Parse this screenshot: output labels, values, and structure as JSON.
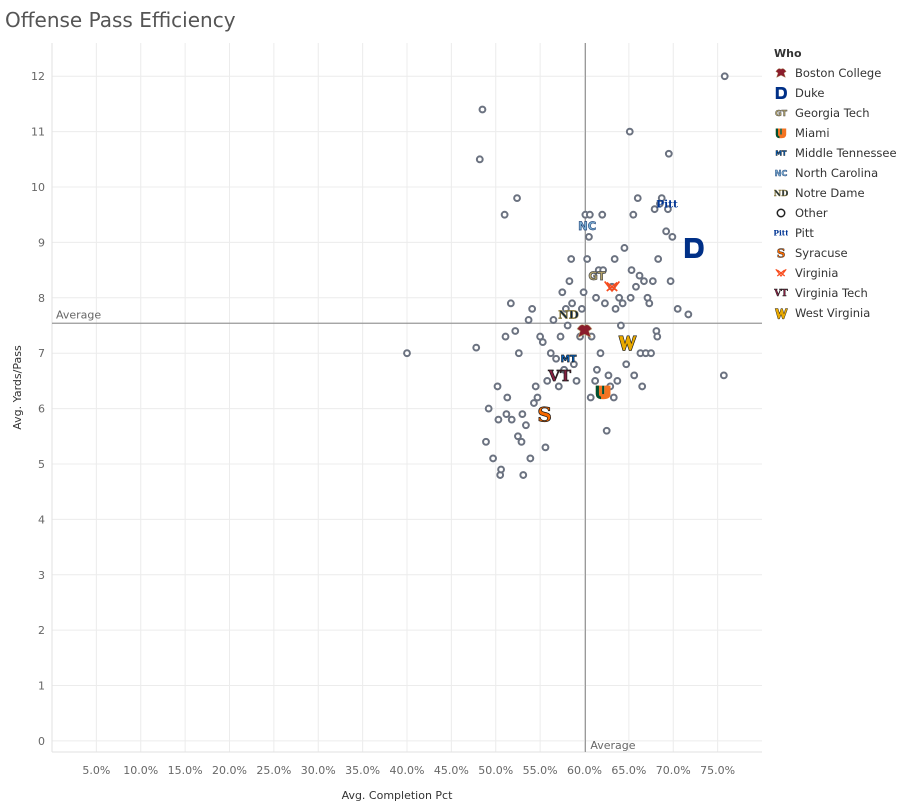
{
  "title": "Offense Pass Efficiency",
  "chart_data": {
    "type": "scatter",
    "xlabel": "Avg. Completion Pct",
    "ylabel": "Avg. Yards/Pass",
    "xlim": [
      0.0,
      0.8
    ],
    "ylim": [
      -0.2,
      12.6
    ],
    "x_ticks": [
      0.05,
      0.1,
      0.15,
      0.2,
      0.25,
      0.3,
      0.35,
      0.4,
      0.45,
      0.5,
      0.55,
      0.6,
      0.65,
      0.7,
      0.75
    ],
    "x_tick_labels": [
      "5.0%",
      "10.0%",
      "15.0%",
      "20.0%",
      "25.0%",
      "30.0%",
      "35.0%",
      "40.0%",
      "45.0%",
      "50.0%",
      "55.0%",
      "60.0%",
      "65.0%",
      "70.0%",
      "75.0%"
    ],
    "y_ticks": [
      0,
      1,
      2,
      3,
      4,
      5,
      6,
      7,
      8,
      9,
      10,
      11,
      12
    ],
    "y_tick_labels": [
      "0",
      "1",
      "2",
      "3",
      "4",
      "5",
      "6",
      "7",
      "8",
      "9",
      "10",
      "11",
      "12"
    ],
    "grid": true,
    "legend": {
      "title": "Who",
      "position": "right"
    },
    "reference_lines": [
      {
        "axis": "x",
        "value": 0.601,
        "label": "Average"
      },
      {
        "axis": "y",
        "value": 7.54,
        "label": "Average"
      }
    ],
    "colors": {
      "other": "#6b7280",
      "axis": "#999999",
      "grid": "#ececec"
    },
    "series": [
      {
        "name": "Boston College",
        "icon": "eagle-icon",
        "color": "#8b1d2c",
        "points": [
          [
            0.6,
            7.4
          ]
        ]
      },
      {
        "name": "Duke",
        "icon": "duke-d-icon",
        "color": "#003087",
        "points": [
          [
            0.723,
            8.9
          ]
        ]
      },
      {
        "name": "Georgia Tech",
        "icon": "gt-icon",
        "color": "#b3a369",
        "points": [
          [
            0.614,
            8.4
          ]
        ]
      },
      {
        "name": "Miami",
        "icon": "miami-u-icon",
        "color": "#f47321",
        "points": [
          [
            0.621,
            6.3
          ]
        ]
      },
      {
        "name": "Middle Tennessee",
        "icon": "mtsu-icon",
        "color": "#0066cc",
        "points": [
          [
            0.582,
            6.9
          ]
        ]
      },
      {
        "name": "North Carolina",
        "icon": "unc-icon",
        "color": "#7bafd4",
        "points": [
          [
            0.603,
            9.3
          ]
        ]
      },
      {
        "name": "Notre Dame",
        "icon": "nd-icon",
        "color": "#0c2340",
        "points": [
          [
            0.582,
            7.7
          ]
        ]
      },
      {
        "name": "Other",
        "icon": "circle-icon",
        "color": "#6b7280",
        "points": [
          [
            0.4,
            7.0
          ],
          [
            0.478,
            7.1
          ],
          [
            0.482,
            10.5
          ],
          [
            0.485,
            11.4
          ],
          [
            0.489,
            5.4
          ],
          [
            0.492,
            6.0
          ],
          [
            0.497,
            5.1
          ],
          [
            0.502,
            6.4
          ],
          [
            0.503,
            5.8
          ],
          [
            0.505,
            4.8
          ],
          [
            0.506,
            4.9
          ],
          [
            0.51,
            9.5
          ],
          [
            0.511,
            7.3
          ],
          [
            0.512,
            5.9
          ],
          [
            0.513,
            6.2
          ],
          [
            0.517,
            7.9
          ],
          [
            0.518,
            5.8
          ],
          [
            0.522,
            7.4
          ],
          [
            0.524,
            9.8
          ],
          [
            0.525,
            5.5
          ],
          [
            0.526,
            7.0
          ],
          [
            0.529,
            5.4
          ],
          [
            0.53,
            5.9
          ],
          [
            0.531,
            4.8
          ],
          [
            0.534,
            5.7
          ],
          [
            0.537,
            7.6
          ],
          [
            0.539,
            5.1
          ],
          [
            0.541,
            7.8
          ],
          [
            0.543,
            6.1
          ],
          [
            0.545,
            6.4
          ],
          [
            0.547,
            6.2
          ],
          [
            0.55,
            7.3
          ],
          [
            0.553,
            7.2
          ],
          [
            0.556,
            5.3
          ],
          [
            0.558,
            6.5
          ],
          [
            0.562,
            7.0
          ],
          [
            0.565,
            7.6
          ],
          [
            0.568,
            6.9
          ],
          [
            0.571,
            6.4
          ],
          [
            0.573,
            7.3
          ],
          [
            0.575,
            8.1
          ],
          [
            0.577,
            6.7
          ],
          [
            0.579,
            7.8
          ],
          [
            0.581,
            7.5
          ],
          [
            0.583,
            8.3
          ],
          [
            0.585,
            8.7
          ],
          [
            0.586,
            7.9
          ],
          [
            0.588,
            6.8
          ],
          [
            0.591,
            6.5
          ],
          [
            0.595,
            7.3
          ],
          [
            0.597,
            7.8
          ],
          [
            0.599,
            8.1
          ],
          [
            0.601,
            9.5
          ],
          [
            0.603,
            8.7
          ],
          [
            0.605,
            9.1
          ],
          [
            0.606,
            9.5
          ],
          [
            0.607,
            6.2
          ],
          [
            0.608,
            7.3
          ],
          [
            0.61,
            8.4
          ],
          [
            0.612,
            6.5
          ],
          [
            0.613,
            8.0
          ],
          [
            0.614,
            6.7
          ],
          [
            0.616,
            8.5
          ],
          [
            0.618,
            7.0
          ],
          [
            0.62,
            9.5
          ],
          [
            0.621,
            8.5
          ],
          [
            0.623,
            7.9
          ],
          [
            0.625,
            5.6
          ],
          [
            0.627,
            6.6
          ],
          [
            0.629,
            6.4
          ],
          [
            0.631,
            8.2
          ],
          [
            0.633,
            6.2
          ],
          [
            0.634,
            8.7
          ],
          [
            0.635,
            7.8
          ],
          [
            0.637,
            6.5
          ],
          [
            0.639,
            8.0
          ],
          [
            0.641,
            7.5
          ],
          [
            0.643,
            7.9
          ],
          [
            0.645,
            8.9
          ],
          [
            0.647,
            6.8
          ],
          [
            0.651,
            11.0
          ],
          [
            0.652,
            8.0
          ],
          [
            0.653,
            8.5
          ],
          [
            0.655,
            9.5
          ],
          [
            0.656,
            6.6
          ],
          [
            0.658,
            8.2
          ],
          [
            0.66,
            9.8
          ],
          [
            0.662,
            8.4
          ],
          [
            0.663,
            7.0
          ],
          [
            0.665,
            6.4
          ],
          [
            0.667,
            8.3
          ],
          [
            0.669,
            7.0
          ],
          [
            0.671,
            8.0
          ],
          [
            0.673,
            7.9
          ],
          [
            0.675,
            7.0
          ],
          [
            0.677,
            8.3
          ],
          [
            0.679,
            9.6
          ],
          [
            0.681,
            7.4
          ],
          [
            0.682,
            7.3
          ],
          [
            0.683,
            8.7
          ],
          [
            0.685,
            9.7
          ],
          [
            0.687,
            9.8
          ],
          [
            0.692,
            9.2
          ],
          [
            0.694,
            9.6
          ],
          [
            0.695,
            10.6
          ],
          [
            0.697,
            8.3
          ],
          [
            0.699,
            9.1
          ],
          [
            0.705,
            7.8
          ],
          [
            0.717,
            7.7
          ],
          [
            0.757,
            6.6
          ],
          [
            0.758,
            12.0
          ]
        ]
      },
      {
        "name": "Pitt",
        "icon": "pitt-icon",
        "color": "#003594",
        "points": [
          [
            0.693,
            9.7
          ]
        ]
      },
      {
        "name": "Syracuse",
        "icon": "syracuse-s-icon",
        "color": "#f76900",
        "points": [
          [
            0.555,
            5.9
          ]
        ]
      },
      {
        "name": "Virginia",
        "icon": "virginia-icon",
        "color": "#f84c1e",
        "points": [
          [
            0.631,
            8.2
          ]
        ]
      },
      {
        "name": "Virginia Tech",
        "icon": "vt-icon",
        "color": "#861f41",
        "points": [
          [
            0.572,
            6.6
          ]
        ]
      },
      {
        "name": "West Virginia",
        "icon": "wv-icon",
        "color": "#eaaa00",
        "points": [
          [
            0.648,
            7.2
          ]
        ]
      }
    ]
  }
}
